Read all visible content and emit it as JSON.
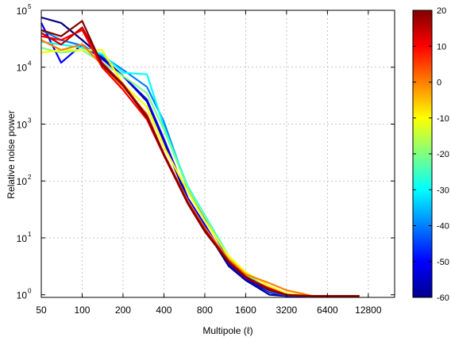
{
  "chart_data": {
    "type": "line",
    "xlabel": "Multipole (ℓ)",
    "ylabel": "Relative noise power",
    "x_scale": "log2",
    "y_scale": "log10",
    "xlim": [
      50,
      20000
    ],
    "ylim": [
      0.9,
      100000
    ],
    "x_ticks": [
      50,
      100,
      200,
      400,
      800,
      1600,
      3200,
      6400,
      12800
    ],
    "x_tick_labels": [
      "50",
      "100",
      "200",
      "400",
      "800",
      "1600",
      "3200",
      "6400",
      "12800"
    ],
    "y_ticks": [
      1,
      10,
      100,
      1000,
      10000,
      100000
    ],
    "y_tick_labels": [
      "10",
      "10",
      "10",
      "10",
      "10",
      "10"
    ],
    "y_tick_exponents": [
      "0",
      "1",
      "2",
      "3",
      "4",
      "5"
    ],
    "grid": true,
    "colorbar": {
      "min": -60,
      "max": 20,
      "ticks": [
        20,
        10,
        0,
        -10,
        -20,
        -30,
        -40,
        -50,
        -60
      ],
      "tick_labels": [
        "20",
        "10",
        "0",
        "-10",
        "-20",
        "-30",
        "-40",
        "-50",
        "-60"
      ],
      "colormap": "jet"
    },
    "series": [
      {
        "level": -60,
        "x": [
          50,
          70,
          100,
          140,
          200,
          300,
          400,
          600,
          800,
          1200,
          1600,
          2400,
          3200,
          5000,
          8000,
          11000
        ],
        "y": [
          75000,
          60000,
          30000,
          15000,
          7000,
          2500,
          500,
          45,
          15,
          3.2,
          1.8,
          1.0,
          0.95,
          0.95,
          0.95,
          0.95
        ]
      },
      {
        "level": -50,
        "x": [
          50,
          70,
          100,
          140,
          200,
          300,
          400,
          600,
          800,
          1200,
          1600,
          2400,
          3200,
          5000,
          8000,
          11000
        ],
        "y": [
          60000,
          12000,
          25000,
          14000,
          7000,
          2700,
          550,
          50,
          17,
          3.5,
          1.9,
          1.1,
          0.95,
          0.95,
          0.95,
          0.95
        ]
      },
      {
        "level": -40,
        "x": [
          50,
          70,
          100,
          140,
          200,
          300,
          400,
          600,
          800,
          1200,
          1600,
          2400,
          3200,
          5000,
          8000,
          11000
        ],
        "y": [
          45000,
          30000,
          24000,
          16000,
          9000,
          4500,
          1100,
          70,
          22,
          4.2,
          2.2,
          1.15,
          0.97,
          0.95,
          0.95,
          0.95
        ]
      },
      {
        "level": -30,
        "x": [
          50,
          70,
          100,
          140,
          200,
          300,
          400,
          600,
          800,
          1200,
          1600,
          2400,
          3200,
          5000,
          8000,
          11000
        ],
        "y": [
          28000,
          25000,
          22000,
          17000,
          8000,
          7500,
          900,
          80,
          25,
          4.8,
          2.4,
          1.2,
          1.0,
          0.95,
          0.95,
          0.95
        ]
      },
      {
        "level": -20,
        "x": [
          50,
          70,
          100,
          140,
          200,
          300,
          400,
          600,
          800,
          1200,
          1600,
          2400,
          3200,
          5000,
          8000,
          11000
        ],
        "y": [
          22000,
          18000,
          20000,
          12000,
          7000,
          3500,
          800,
          75,
          24,
          4.5,
          2.3,
          1.25,
          1.0,
          0.95,
          0.95,
          0.95
        ]
      },
      {
        "level": -10,
        "x": [
          50,
          70,
          100,
          140,
          200,
          300,
          400,
          600,
          800,
          1200,
          1600,
          2400,
          3200,
          5000,
          8000,
          11000
        ],
        "y": [
          18000,
          20000,
          20000,
          20000,
          5000,
          2000,
          400,
          65,
          20,
          4.8,
          2.5,
          1.4,
          1.05,
          0.95,
          0.95,
          0.95
        ]
      },
      {
        "level": 0,
        "x": [
          50,
          70,
          100,
          140,
          200,
          300,
          400,
          600,
          800,
          1200,
          1600,
          2400,
          3200,
          5000,
          8000,
          11000
        ],
        "y": [
          30000,
          20000,
          25000,
          11000,
          4500,
          1500,
          300,
          45,
          15,
          4.2,
          2.3,
          1.6,
          1.2,
          0.95,
          0.95,
          0.95
        ]
      },
      {
        "level": 10,
        "x": [
          50,
          70,
          100,
          140,
          200,
          300,
          400,
          600,
          800,
          1200,
          1600,
          2400,
          3200,
          5000,
          8000,
          11000
        ],
        "y": [
          35000,
          30000,
          45000,
          10000,
          4000,
          1200,
          280,
          40,
          13,
          3.8,
          2.0,
          1.3,
          1.0,
          0.95,
          0.95,
          0.95
        ]
      },
      {
        "level": 15,
        "x": [
          50,
          70,
          100,
          140,
          200,
          300,
          400,
          600,
          800,
          1200,
          1600,
          2400,
          3200,
          5000,
          8000,
          11000
        ],
        "y": [
          40000,
          25000,
          50000,
          12000,
          5000,
          1400,
          300,
          42,
          14,
          3.9,
          2.1,
          1.25,
          1.0,
          0.95,
          0.95,
          0.95
        ]
      },
      {
        "level": 20,
        "x": [
          50,
          70,
          100,
          140,
          200,
          300,
          400,
          600,
          800,
          1200,
          1600,
          2400,
          3200,
          5000,
          8000,
          11000
        ],
        "y": [
          45000,
          35000,
          65000,
          11000,
          4800,
          1300,
          290,
          40,
          13,
          3.7,
          2.0,
          1.2,
          0.98,
          0.95,
          0.95,
          0.95
        ]
      }
    ]
  }
}
